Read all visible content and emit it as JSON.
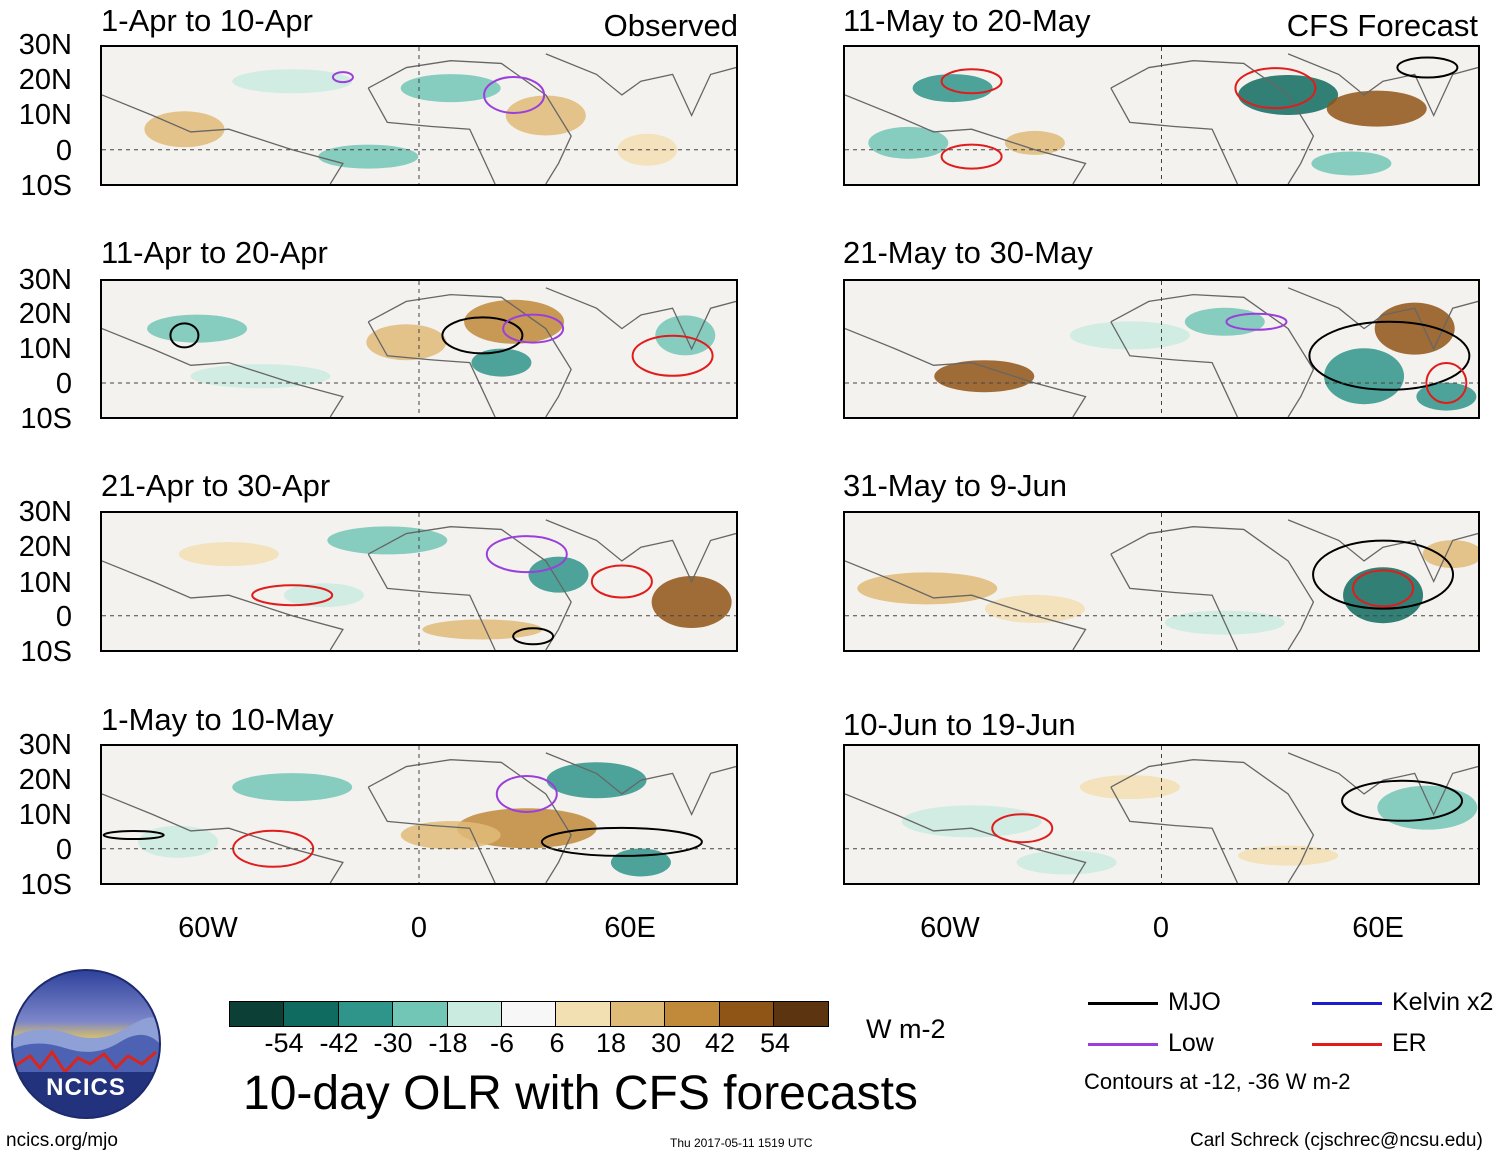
{
  "panels": [
    {
      "title": "1-Apr to 10-Apr",
      "tag": "Observed"
    },
    {
      "title": "11-Apr to 20-Apr",
      "tag": ""
    },
    {
      "title": "21-Apr to 30-Apr",
      "tag": ""
    },
    {
      "title": "1-May to 10-May",
      "tag": ""
    },
    {
      "title": "11-May to 20-May",
      "tag": "CFS Forecast"
    },
    {
      "title": "21-May to 30-May",
      "tag": ""
    },
    {
      "title": "31-May to 9-Jun",
      "tag": ""
    },
    {
      "title": "10-Jun to 19-Jun",
      "tag": ""
    }
  ],
  "lat_labels": [
    "30N",
    "20N",
    "10N",
    "0",
    "10S"
  ],
  "lon_labels": [
    "60W",
    "0",
    "60E"
  ],
  "colorbar": {
    "labels": [
      "-54",
      "-42",
      "-30",
      "-18",
      "-6",
      "6",
      "18",
      "30",
      "42",
      "54"
    ],
    "colors": [
      "#0c3f35",
      "#0f6b5f",
      "#2f948a",
      "#72c6b6",
      "#c9ebe0",
      "#f7f7f7",
      "#f2dfb2",
      "#dfbb78",
      "#c08a3a",
      "#8f5516",
      "#5c3410"
    ],
    "units": "W m-2"
  },
  "legend": {
    "items": [
      {
        "label": "MJO",
        "color": "#000000"
      },
      {
        "label": "Kelvin x2",
        "color": "#1b1bd0"
      },
      {
        "label": "Low",
        "color": "#9b3fdc"
      },
      {
        "label": "ER",
        "color": "#e01c1c"
      }
    ],
    "note": "Contours at -12, -36 W m-2"
  },
  "logo_text": "NCICS",
  "main_title": "10-day OLR with CFS forecasts",
  "footer": {
    "left": "ncics.org/mjo",
    "center": "Thu 2017-05-11 1519 UTC",
    "right": "Carl Schreck (cjschrec@ncsu.edu)"
  }
}
